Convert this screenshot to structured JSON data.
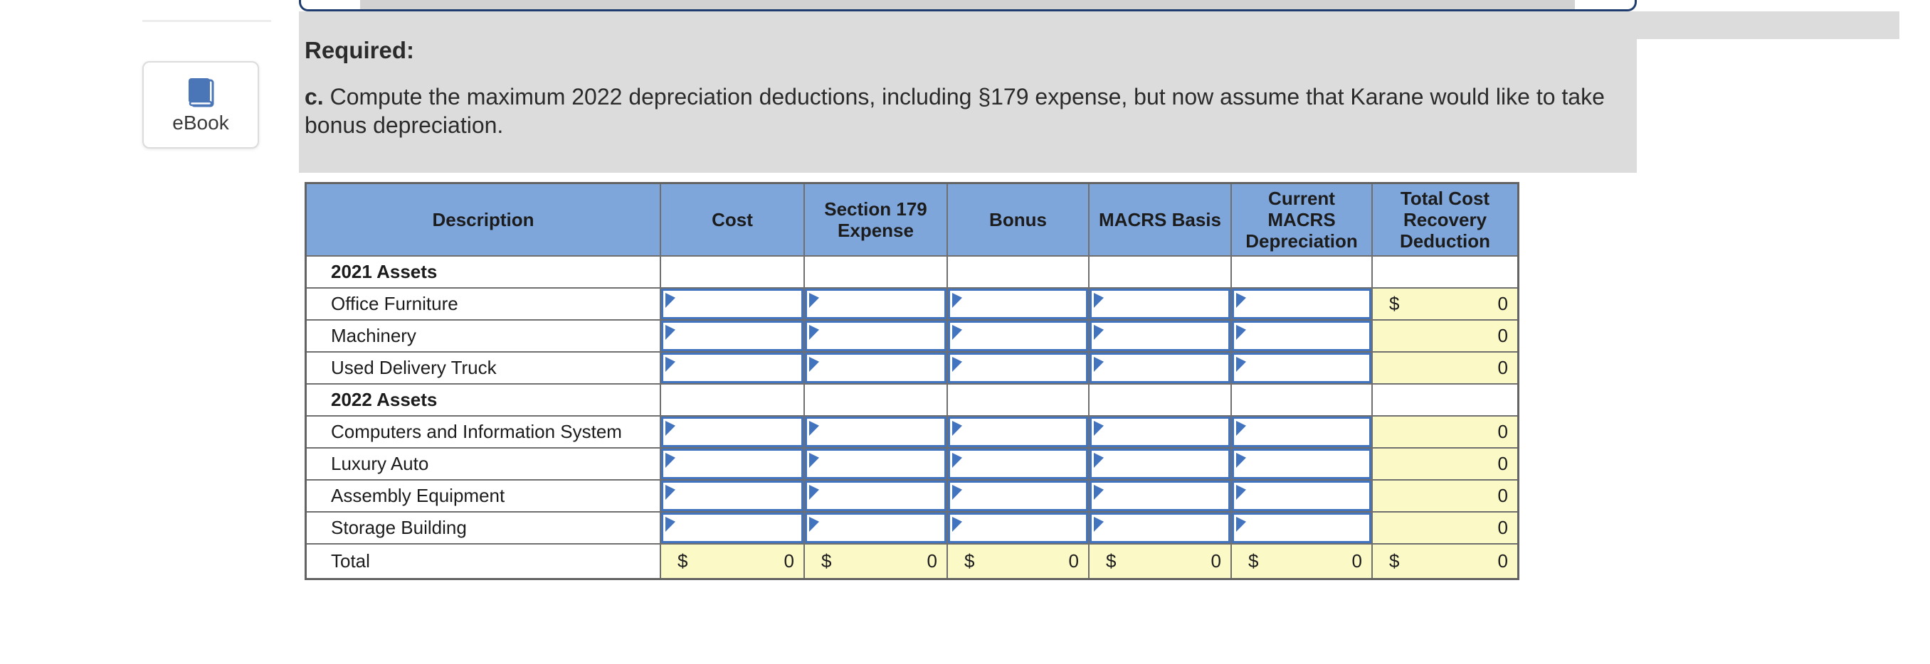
{
  "ebook": {
    "label": "eBook",
    "icon": "book-icon"
  },
  "scrollbar": {
    "orientation": "horizontal"
  },
  "instructions": {
    "required_label": "Required:",
    "part_label": "c.",
    "text": "Compute the maximum 2022 depreciation deductions, including §179 expense, but now assume that Karane would like to take bonus depreciation."
  },
  "table": {
    "columns": [
      "Description",
      "Cost",
      "Section 179\nExpense",
      "Bonus",
      "MACRS Basis",
      "Current\nMACRS\nDepreciation",
      "Total Cost\nRecovery\nDeduction"
    ],
    "input_columns": [
      "Cost",
      "Section 179 Expense",
      "Bonus",
      "MACRS Basis",
      "Current MACRS Depreciation"
    ],
    "rows": [
      {
        "type": "section",
        "label": "2021 Assets"
      },
      {
        "type": "asset",
        "label": "Office Furniture",
        "total_prefix": "$",
        "total_value": "0"
      },
      {
        "type": "asset",
        "label": "Machinery",
        "total_value": "0"
      },
      {
        "type": "asset",
        "label": "Used Delivery Truck",
        "total_value": "0"
      },
      {
        "type": "section",
        "label": "2022 Assets"
      },
      {
        "type": "asset",
        "label": "Computers and Information System",
        "total_value": "0"
      },
      {
        "type": "asset",
        "label": "Luxury Auto",
        "total_value": "0"
      },
      {
        "type": "asset",
        "label": "Assembly Equipment",
        "total_value": "0"
      },
      {
        "type": "asset",
        "label": "Storage Building",
        "total_value": "0"
      },
      {
        "type": "total",
        "label": "Total",
        "cells": [
          {
            "prefix": "$",
            "value": "0"
          },
          {
            "prefix": "$",
            "value": "0"
          },
          {
            "prefix": "$",
            "value": "0"
          },
          {
            "prefix": "$",
            "value": "0"
          },
          {
            "prefix": "$",
            "value": "0"
          },
          {
            "prefix": "$",
            "value": "0"
          }
        ]
      }
    ]
  },
  "colors": {
    "header_blue": "#7ea6db",
    "input_border_blue": "#4273be",
    "result_yellow": "#fbf9c6",
    "grid_gray": "#6f6f6f",
    "panel_gray": "#dcdcdc",
    "navy_border": "#1f3c6e",
    "scroll_thumb_gray": "#d2d2d2",
    "ebook_blue": "#4a76b8"
  }
}
